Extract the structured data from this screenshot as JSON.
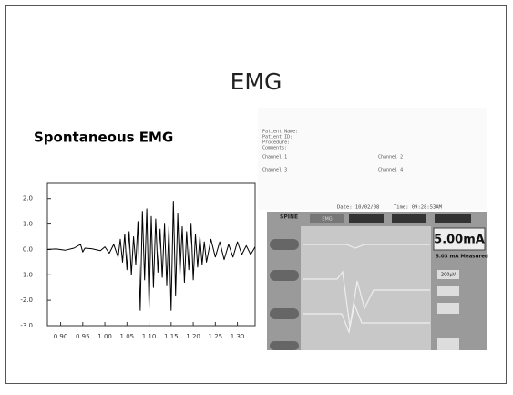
{
  "slide": {
    "title": "EMG",
    "heading": "Spontaneous EMG"
  },
  "chart_data": {
    "type": "line",
    "color": "#000000",
    "x": [
      0.87,
      0.89,
      0.91,
      0.93,
      0.945,
      0.95,
      0.955,
      0.97,
      0.99,
      1.0,
      1.01,
      1.02,
      1.03,
      1.035,
      1.04,
      1.045,
      1.05,
      1.055,
      1.06,
      1.065,
      1.07,
      1.075,
      1.08,
      1.085,
      1.09,
      1.095,
      1.1,
      1.105,
      1.11,
      1.115,
      1.12,
      1.125,
      1.13,
      1.135,
      1.14,
      1.145,
      1.15,
      1.155,
      1.16,
      1.165,
      1.17,
      1.175,
      1.18,
      1.185,
      1.19,
      1.195,
      1.2,
      1.205,
      1.21,
      1.215,
      1.22,
      1.225,
      1.23,
      1.24,
      1.25,
      1.26,
      1.27,
      1.28,
      1.29,
      1.3,
      1.31,
      1.32,
      1.33,
      1.34
    ],
    "values": [
      0,
      0.02,
      -0.03,
      0.05,
      0.2,
      -0.1,
      0.05,
      0.03,
      -0.05,
      0.1,
      -0.15,
      0.2,
      -0.3,
      0.4,
      -0.5,
      0.6,
      -0.8,
      0.7,
      -1.0,
      0.5,
      -0.6,
      1.1,
      -2.4,
      1.5,
      -1.2,
      1.6,
      -2.3,
      1.3,
      -1.5,
      1.2,
      -0.9,
      0.8,
      -1.1,
      1.0,
      -1.4,
      0.9,
      -2.4,
      1.9,
      -1.8,
      1.4,
      -1.0,
      0.9,
      -1.3,
      0.7,
      -0.8,
      1.0,
      -1.2,
      0.6,
      -0.7,
      0.5,
      -0.6,
      0.3,
      -0.5,
      0.4,
      -0.3,
      0.3,
      -0.4,
      0.2,
      -0.3,
      0.3,
      -0.2,
      0.15,
      -0.2,
      0.1
    ],
    "xlim": [
      0.87,
      1.34
    ],
    "ylim": [
      -3.0,
      2.6
    ],
    "xticks": [
      {
        "value": 0.9,
        "label": "0.90"
      },
      {
        "value": 0.95,
        "label": "0.95"
      },
      {
        "value": 1.0,
        "label": "1.00"
      },
      {
        "value": 1.05,
        "label": "1.05"
      },
      {
        "value": 1.1,
        "label": "1.10"
      },
      {
        "value": 1.15,
        "label": "1.15"
      },
      {
        "value": 1.2,
        "label": "1.20"
      },
      {
        "value": 1.25,
        "label": "1.25"
      },
      {
        "value": 1.3,
        "label": "1.30"
      }
    ],
    "yticks": [
      {
        "value": 2,
        "label": "2.0"
      },
      {
        "value": 1,
        "label": "1.0"
      },
      {
        "value": 0,
        "label": "0.0"
      },
      {
        "value": -1,
        "label": "-1.0"
      },
      {
        "value": -2,
        "label": "-2.0"
      },
      {
        "value": -3,
        "label": "-3.0"
      }
    ]
  },
  "monitor": {
    "patient": [
      "Patient Name:",
      "Patient ID:",
      "Procedure:",
      "Comments:"
    ],
    "channels": [
      "Channel 1",
      "Channel 2",
      "Channel 3",
      "Channel 4"
    ],
    "date": "Date: 10/02/08",
    "time": "Time: 09:28:53AM",
    "mode": "SPINE",
    "tab": "EMG",
    "current": "5.00mA",
    "measured": "5.03 mA Measured",
    "scale": "200µV"
  }
}
